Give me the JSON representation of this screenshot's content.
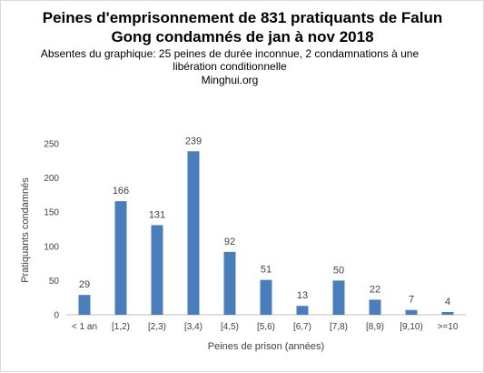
{
  "chart_data": {
    "type": "bar",
    "title_lines": [
      "Peines d'emprisonnement de 831 pratiquants de Falun",
      "Gong condamnés de jan à nov 2018"
    ],
    "subtitle_lines": [
      "Absentes du graphique: 25 peines de durée inconnue, 2 condamnations à une",
      "libération conditionnelle",
      "Minghui.org"
    ],
    "categories": [
      "< 1 an",
      "[1,2)",
      "[2,3)",
      "[3,4)",
      "[4,5)",
      "[5,6)",
      "[6,7)",
      "[7,8)",
      "[8,9)",
      "[9,10)",
      ">=10"
    ],
    "values": [
      29,
      166,
      131,
      239,
      92,
      51,
      13,
      50,
      22,
      7,
      4
    ],
    "xlabel": "Peines de prison (années)",
    "ylabel": "Pratiquants condamnés",
    "ylim": [
      0,
      250
    ],
    "yticks": [
      0,
      50,
      100,
      150,
      200,
      250
    ],
    "grid": false,
    "legend": "none",
    "bar_color": "#4a7ebb"
  }
}
